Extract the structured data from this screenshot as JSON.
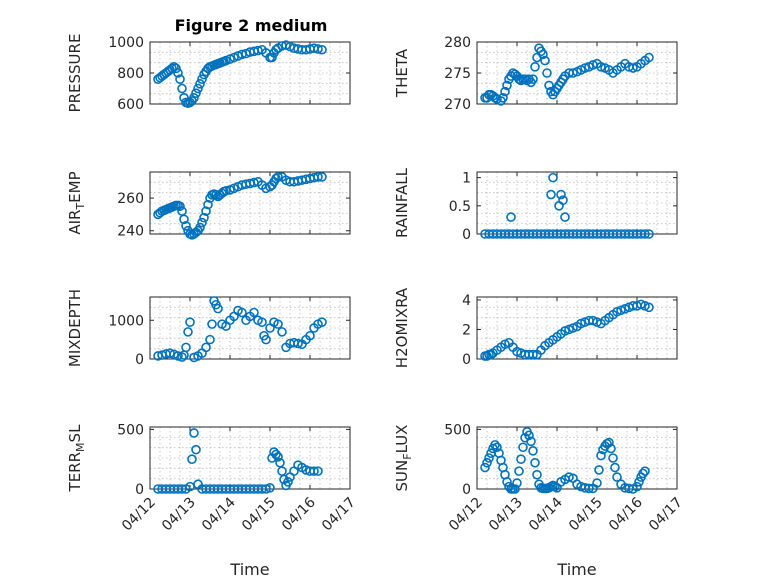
{
  "figure": {
    "title": "Figure 2 medium"
  },
  "colors": {
    "marker": "#0072bd",
    "axis": "#262626",
    "grid": "#bdbdbd"
  },
  "chart_data": [
    {
      "type": "scatter",
      "id": "pressure",
      "ylabel": "PRESSURE",
      "ylim": [
        600,
        1000
      ],
      "yticks": [
        600,
        800,
        1000
      ],
      "yticklabels": [
        "600",
        "800",
        "1000"
      ],
      "xlim": [
        0,
        5
      ],
      "xticks": [
        0,
        1,
        2,
        3,
        4,
        5
      ],
      "grid": true,
      "x": [
        0.2,
        0.25,
        0.3,
        0.35,
        0.4,
        0.45,
        0.5,
        0.55,
        0.6,
        0.65,
        0.7,
        0.75,
        0.8,
        0.85,
        0.9,
        0.95,
        1.0,
        1.05,
        1.1,
        1.15,
        1.2,
        1.25,
        1.3,
        1.35,
        1.4,
        1.45,
        1.5,
        1.55,
        1.6,
        1.65,
        1.7,
        1.75,
        1.8,
        1.85,
        1.9,
        2.0,
        2.1,
        2.2,
        2.3,
        2.4,
        2.5,
        2.6,
        2.7,
        2.8,
        2.9,
        3.0,
        3.05,
        3.1,
        3.15,
        3.2,
        3.3,
        3.4,
        3.5,
        3.6,
        3.7,
        3.8,
        3.9,
        4.0,
        4.1,
        4.2,
        4.3
      ],
      "y": [
        760,
        770,
        780,
        790,
        800,
        810,
        820,
        830,
        840,
        830,
        800,
        760,
        700,
        640,
        610,
        605,
        610,
        620,
        640,
        670,
        700,
        730,
        760,
        790,
        810,
        830,
        840,
        845,
        850,
        855,
        860,
        865,
        870,
        875,
        880,
        890,
        900,
        910,
        920,
        925,
        935,
        940,
        945,
        950,
        930,
        900,
        900,
        930,
        950,
        960,
        975,
        980,
        970,
        960,
        955,
        950,
        950,
        955,
        960,
        955,
        950
      ]
    },
    {
      "type": "scatter",
      "id": "theta",
      "ylabel": "THETA",
      "ylim": [
        270,
        280
      ],
      "yticks": [
        270,
        275,
        280
      ],
      "yticklabels": [
        "270",
        "275",
        "280"
      ],
      "xlim": [
        0,
        5
      ],
      "xticks": [
        0,
        1,
        2,
        3,
        4,
        5
      ],
      "grid": true,
      "x": [
        0.2,
        0.25,
        0.3,
        0.35,
        0.4,
        0.45,
        0.5,
        0.6,
        0.65,
        0.7,
        0.75,
        0.8,
        0.85,
        0.9,
        0.95,
        1.0,
        1.05,
        1.1,
        1.15,
        1.2,
        1.25,
        1.3,
        1.35,
        1.4,
        1.45,
        1.5,
        1.55,
        1.6,
        1.65,
        1.7,
        1.75,
        1.8,
        1.85,
        1.9,
        1.95,
        2.0,
        2.05,
        2.1,
        2.15,
        2.2,
        2.3,
        2.4,
        2.5,
        2.6,
        2.7,
        2.8,
        2.9,
        3.0,
        3.1,
        3.2,
        3.3,
        3.4,
        3.5,
        3.6,
        3.7,
        3.8,
        3.9,
        4.0,
        4.1,
        4.2,
        4.3
      ],
      "y": [
        271,
        271,
        271.5,
        271.5,
        271.3,
        271,
        270.8,
        270.5,
        271,
        272,
        273,
        274,
        274.5,
        275,
        274.8,
        274.5,
        274,
        273.8,
        274,
        274,
        273.8,
        274,
        273.5,
        274,
        276,
        277.5,
        279,
        278.5,
        278,
        277,
        275,
        273,
        272,
        271.5,
        272,
        272.5,
        273,
        273.5,
        274,
        274.5,
        275,
        275,
        275.2,
        275.5,
        275.8,
        276,
        276.3,
        276.5,
        276,
        275.8,
        275.5,
        275,
        275.5,
        276,
        276.5,
        276,
        275.8,
        276,
        276.5,
        277,
        277.5
      ]
    },
    {
      "type": "scatter",
      "id": "air-temp",
      "ylabel": "AIR_TEMP",
      "ylim": [
        238,
        276
      ],
      "yticks": [
        240,
        260
      ],
      "yticklabels": [
        "240",
        "260"
      ],
      "xlim": [
        0,
        5
      ],
      "xticks": [
        0,
        1,
        2,
        3,
        4,
        5
      ],
      "grid": true,
      "x": [
        0.2,
        0.25,
        0.3,
        0.35,
        0.4,
        0.45,
        0.5,
        0.55,
        0.6,
        0.65,
        0.7,
        0.75,
        0.8,
        0.85,
        0.9,
        0.95,
        1.0,
        1.05,
        1.1,
        1.15,
        1.2,
        1.25,
        1.3,
        1.35,
        1.4,
        1.45,
        1.5,
        1.55,
        1.6,
        1.65,
        1.7,
        1.75,
        1.8,
        1.85,
        1.9,
        2.0,
        2.1,
        2.2,
        2.3,
        2.4,
        2.5,
        2.6,
        2.7,
        2.8,
        2.9,
        3.0,
        3.05,
        3.1,
        3.15,
        3.2,
        3.3,
        3.4,
        3.5,
        3.6,
        3.7,
        3.8,
        3.9,
        4.0,
        4.1,
        4.2,
        4.3
      ],
      "y": [
        250,
        251,
        252,
        252.5,
        253,
        253.5,
        254,
        254.5,
        255,
        255.5,
        255.5,
        255,
        252,
        247,
        243,
        240,
        238,
        237.5,
        238,
        239,
        240,
        242,
        245,
        248,
        252,
        256,
        260,
        262,
        262.5,
        262,
        261,
        262,
        263,
        264,
        264.5,
        265,
        266,
        267,
        268,
        268.5,
        269,
        269.5,
        270,
        268,
        266,
        267,
        268,
        270,
        272,
        273,
        273,
        271,
        270,
        270,
        270.5,
        271,
        271.5,
        272,
        272.5,
        273,
        273
      ]
    },
    {
      "type": "scatter",
      "id": "rainfall",
      "ylabel": "RAINFALL",
      "ylim": [
        0,
        1.1
      ],
      "yticks": [
        0,
        0.5,
        1
      ],
      "yticklabels": [
        "0",
        "0.5",
        "1"
      ],
      "xlim": [
        0,
        5
      ],
      "xticks": [
        0,
        1,
        2,
        3,
        4,
        5
      ],
      "grid": true,
      "x": [
        0.2,
        0.3,
        0.4,
        0.5,
        0.6,
        0.7,
        0.8,
        0.9,
        1.0,
        1.1,
        1.2,
        1.3,
        1.4,
        1.5,
        1.6,
        1.7,
        1.8,
        1.9,
        2.0,
        2.1,
        2.2,
        2.3,
        2.4,
        2.5,
        2.6,
        2.7,
        2.8,
        2.9,
        3.0,
        3.1,
        3.2,
        3.3,
        3.4,
        3.5,
        3.6,
        3.7,
        3.8,
        3.9,
        4.0,
        4.1,
        4.2,
        4.3,
        0.85,
        1.85,
        1.9,
        2.05,
        2.1,
        2.15,
        2.2
      ],
      "y": [
        0,
        0,
        0,
        0,
        0,
        0,
        0,
        0,
        0,
        0,
        0,
        0,
        0,
        0,
        0,
        0,
        0,
        0,
        0,
        0,
        0,
        0,
        0,
        0,
        0,
        0,
        0,
        0,
        0,
        0,
        0,
        0,
        0,
        0,
        0,
        0,
        0,
        0,
        0,
        0,
        0,
        0,
        0.3,
        0.7,
        1.0,
        0.5,
        0.7,
        0.6,
        0.3
      ]
    },
    {
      "type": "scatter",
      "id": "mixdepth",
      "ylabel": "MIXDEPTH",
      "ylim": [
        0,
        1600
      ],
      "yticks": [
        0,
        1000
      ],
      "yticklabels": [
        "0",
        "1000"
      ],
      "xlim": [
        0,
        5
      ],
      "xticks": [
        0,
        1,
        2,
        3,
        4,
        5
      ],
      "grid": true,
      "x": [
        0.2,
        0.3,
        0.4,
        0.5,
        0.6,
        0.7,
        0.8,
        0.85,
        0.9,
        0.95,
        1.0,
        1.1,
        1.2,
        1.3,
        1.4,
        1.5,
        1.55,
        1.6,
        1.65,
        1.7,
        1.8,
        1.9,
        2.0,
        2.1,
        2.2,
        2.3,
        2.4,
        2.5,
        2.6,
        2.7,
        2.8,
        2.85,
        2.9,
        3.0,
        3.1,
        3.2,
        3.3,
        3.4,
        3.5,
        3.6,
        3.7,
        3.8,
        3.9,
        4.0,
        4.1,
        4.2,
        4.3
      ],
      "y": [
        80,
        100,
        130,
        150,
        120,
        80,
        50,
        100,
        300,
        700,
        950,
        40,
        80,
        150,
        300,
        500,
        900,
        1500,
        1400,
        1300,
        900,
        850,
        1000,
        1100,
        1250,
        1200,
        1000,
        1100,
        1200,
        1000,
        950,
        600,
        500,
        800,
        950,
        900,
        700,
        300,
        400,
        420,
        400,
        380,
        500,
        600,
        800,
        900,
        950
      ]
    },
    {
      "type": "scatter",
      "id": "h2omixra",
      "ylabel": "H2OMIXRA",
      "ylim": [
        0,
        4.2
      ],
      "yticks": [
        0,
        2,
        4
      ],
      "yticklabels": [
        "0",
        "2",
        "4"
      ],
      "xlim": [
        0,
        5
      ],
      "xticks": [
        0,
        1,
        2,
        3,
        4,
        5
      ],
      "grid": true,
      "x": [
        0.2,
        0.25,
        0.3,
        0.35,
        0.4,
        0.5,
        0.6,
        0.7,
        0.8,
        0.9,
        1.0,
        1.1,
        1.2,
        1.3,
        1.4,
        1.5,
        1.6,
        1.7,
        1.8,
        1.9,
        2.0,
        2.1,
        2.2,
        2.3,
        2.4,
        2.5,
        2.6,
        2.7,
        2.8,
        2.9,
        3.0,
        3.1,
        3.2,
        3.3,
        3.4,
        3.5,
        3.6,
        3.7,
        3.8,
        3.9,
        4.0,
        4.1,
        4.2,
        4.3
      ],
      "y": [
        0.2,
        0.2,
        0.3,
        0.3,
        0.4,
        0.6,
        0.8,
        1.0,
        1.1,
        0.8,
        0.5,
        0.4,
        0.3,
        0.3,
        0.3,
        0.3,
        0.6,
        0.9,
        1.1,
        1.3,
        1.5,
        1.7,
        1.9,
        2.0,
        2.1,
        2.2,
        2.4,
        2.5,
        2.6,
        2.6,
        2.5,
        2.4,
        2.6,
        2.8,
        3.0,
        3.2,
        3.3,
        3.4,
        3.5,
        3.6,
        3.6,
        3.7,
        3.6,
        3.5
      ]
    },
    {
      "type": "scatter",
      "id": "terr-msl",
      "ylabel": "TERR_MSL",
      "ylim": [
        0,
        520
      ],
      "yticks": [
        0,
        500
      ],
      "yticklabels": [
        "0",
        "500"
      ],
      "xlim": [
        0,
        5
      ],
      "xticks": [
        0,
        1,
        2,
        3,
        4,
        5
      ],
      "xticklabels": [
        "04/12",
        "04/13",
        "04/14",
        "04/15",
        "04/16",
        "04/17"
      ],
      "xlabel": "Time",
      "grid": true,
      "x": [
        0.2,
        0.3,
        0.4,
        0.5,
        0.6,
        0.7,
        0.8,
        0.9,
        1.0,
        1.05,
        1.1,
        1.15,
        1.2,
        1.3,
        1.4,
        1.5,
        1.6,
        1.7,
        1.8,
        1.9,
        2.0,
        2.1,
        2.2,
        2.3,
        2.4,
        2.5,
        2.6,
        2.7,
        2.8,
        2.9,
        3.0,
        3.05,
        3.1,
        3.15,
        3.2,
        3.25,
        3.3,
        3.35,
        3.4,
        3.45,
        3.5,
        3.6,
        3.7,
        3.8,
        3.9,
        4.0,
        4.1,
        4.2
      ],
      "y": [
        0,
        0,
        0,
        0,
        0,
        0,
        0,
        0,
        20,
        250,
        470,
        330,
        40,
        0,
        0,
        0,
        0,
        0,
        0,
        0,
        0,
        0,
        0,
        0,
        0,
        0,
        0,
        0,
        0,
        0,
        10,
        260,
        310,
        290,
        270,
        220,
        150,
        80,
        30,
        60,
        100,
        150,
        200,
        180,
        160,
        150,
        150,
        150
      ]
    },
    {
      "type": "scatter",
      "id": "sun-flux",
      "ylabel": "SUN_FLUX",
      "ylim": [
        0,
        520
      ],
      "yticks": [
        0,
        500
      ],
      "yticklabels": [
        "0",
        "500"
      ],
      "xlim": [
        0,
        5
      ],
      "xticks": [
        0,
        1,
        2,
        3,
        4,
        5
      ],
      "xticklabels": [
        "04/12",
        "04/13",
        "04/14",
        "04/15",
        "04/16",
        "04/17"
      ],
      "xlabel": "Time",
      "grid": true,
      "x": [
        0.2,
        0.25,
        0.3,
        0.35,
        0.4,
        0.45,
        0.5,
        0.55,
        0.6,
        0.65,
        0.7,
        0.75,
        0.8,
        0.85,
        0.9,
        0.95,
        1.0,
        1.05,
        1.1,
        1.15,
        1.2,
        1.25,
        1.3,
        1.35,
        1.4,
        1.45,
        1.5,
        1.55,
        1.6,
        1.65,
        1.7,
        1.75,
        1.8,
        1.85,
        1.9,
        1.95,
        2.0,
        2.1,
        2.2,
        2.3,
        2.4,
        2.5,
        2.6,
        2.7,
        2.8,
        2.9,
        3.0,
        3.05,
        3.1,
        3.15,
        3.2,
        3.25,
        3.3,
        3.35,
        3.4,
        3.45,
        3.5,
        3.6,
        3.7,
        3.8,
        3.9,
        4.0,
        4.05,
        4.1,
        4.15,
        4.2
      ],
      "y": [
        180,
        220,
        260,
        300,
        340,
        370,
        350,
        300,
        240,
        180,
        120,
        60,
        20,
        0,
        0,
        0,
        50,
        150,
        250,
        350,
        430,
        480,
        450,
        400,
        320,
        220,
        120,
        40,
        10,
        5,
        5,
        5,
        10,
        20,
        30,
        20,
        10,
        60,
        80,
        100,
        90,
        40,
        20,
        10,
        5,
        5,
        50,
        160,
        280,
        330,
        360,
        380,
        390,
        340,
        260,
        180,
        100,
        40,
        10,
        5,
        0,
        20,
        60,
        100,
        130,
        150
      ]
    }
  ]
}
